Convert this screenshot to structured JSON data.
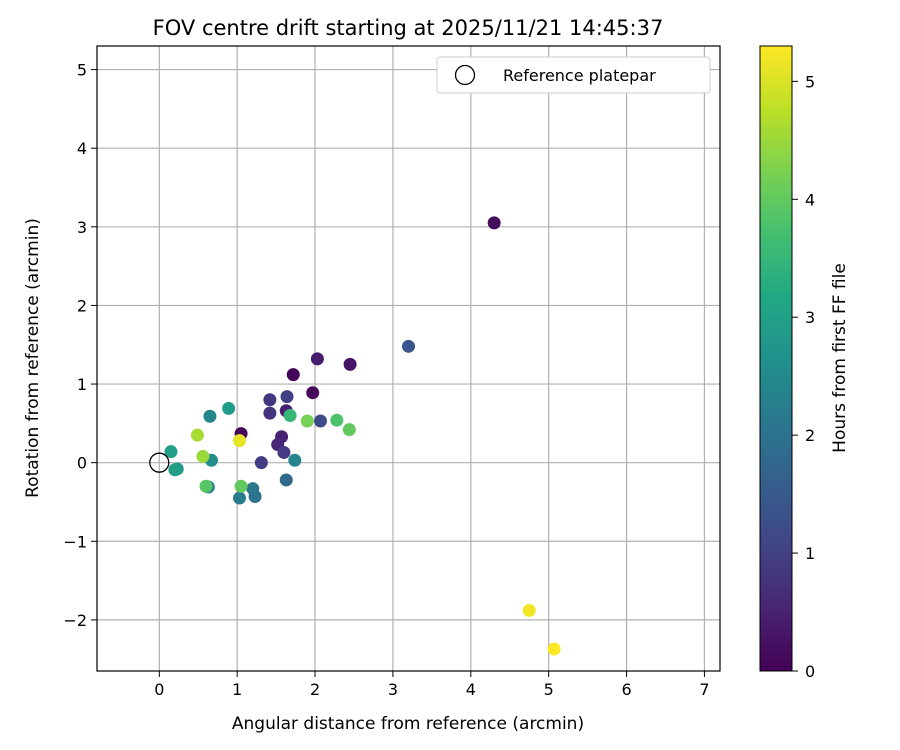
{
  "chart_data": {
    "type": "scatter",
    "title": "FOV centre drift starting at 2025/11/21 14:45:37",
    "xlabel": "Angular distance from reference (arcmin)",
    "ylabel": "Rotation from reference (arcmin)",
    "xlim": [
      -0.8,
      7.2
    ],
    "ylim": [
      -2.65,
      5.3
    ],
    "xticks": [
      0,
      1,
      2,
      3,
      4,
      5,
      6,
      7
    ],
    "yticks": [
      -2,
      -1,
      0,
      1,
      2,
      3,
      4,
      5
    ],
    "xtick_labels": [
      "0",
      "1",
      "2",
      "3",
      "4",
      "5",
      "6",
      "7"
    ],
    "ytick_labels": [
      "−2",
      "−1",
      "0",
      "1",
      "2",
      "3",
      "4",
      "5"
    ],
    "grid": true,
    "legend": {
      "location": "upper-right",
      "label": "Reference platepar"
    },
    "reference_point": {
      "x": 0,
      "y": 0
    },
    "colorbar": {
      "label": "Hours from first FF file",
      "range": [
        0,
        5.3
      ],
      "ticks": [
        0,
        1,
        2,
        3,
        4,
        5
      ],
      "tick_labels": [
        "0",
        "1",
        "2",
        "3",
        "4",
        "5"
      ],
      "colormap": "viridis"
    },
    "points": [
      {
        "x": 4.3,
        "y": 3.05,
        "h": 0.15
      },
      {
        "x": 1.72,
        "y": 1.12,
        "h": 0.05
      },
      {
        "x": 1.97,
        "y": 0.89,
        "h": 0.1
      },
      {
        "x": 1.05,
        "y": 0.37,
        "h": 0.1
      },
      {
        "x": 2.45,
        "y": 1.25,
        "h": 0.3
      },
      {
        "x": 2.03,
        "y": 1.32,
        "h": 0.4
      },
      {
        "x": 1.63,
        "y": 0.66,
        "h": 0.45
      },
      {
        "x": 1.57,
        "y": 0.33,
        "h": 0.5
      },
      {
        "x": 1.52,
        "y": 0.23,
        "h": 0.6
      },
      {
        "x": 1.42,
        "y": 0.63,
        "h": 0.8
      },
      {
        "x": 1.42,
        "y": 0.8,
        "h": 0.85
      },
      {
        "x": 1.6,
        "y": 0.13,
        "h": 0.9
      },
      {
        "x": 1.31,
        "y": 0.0,
        "h": 0.95
      },
      {
        "x": 1.64,
        "y": 0.84,
        "h": 1.0
      },
      {
        "x": 2.07,
        "y": 0.53,
        "h": 1.2
      },
      {
        "x": 3.2,
        "y": 1.48,
        "h": 1.4
      },
      {
        "x": 1.63,
        "y": -0.22,
        "h": 1.8
      },
      {
        "x": 1.23,
        "y": -0.43,
        "h": 2.0
      },
      {
        "x": 1.2,
        "y": -0.33,
        "h": 2.1
      },
      {
        "x": 1.03,
        "y": -0.45,
        "h": 2.2
      },
      {
        "x": 0.63,
        "y": -0.31,
        "h": 2.3
      },
      {
        "x": 1.74,
        "y": 0.03,
        "h": 2.4
      },
      {
        "x": 0.67,
        "y": 0.03,
        "h": 2.6
      },
      {
        "x": 0.65,
        "y": 0.59,
        "h": 2.4
      },
      {
        "x": 0.89,
        "y": 0.69,
        "h": 2.9
      },
      {
        "x": 0.23,
        "y": -0.08,
        "h": 2.8
      },
      {
        "x": 0.2,
        "y": -0.09,
        "h": 2.95
      },
      {
        "x": 0.15,
        "y": 0.14,
        "h": 3.0
      },
      {
        "x": 1.68,
        "y": 0.6,
        "h": 3.5
      },
      {
        "x": 2.28,
        "y": 0.54,
        "h": 3.8
      },
      {
        "x": 0.6,
        "y": -0.3,
        "h": 3.9
      },
      {
        "x": 1.05,
        "y": -0.3,
        "h": 4.0
      },
      {
        "x": 2.44,
        "y": 0.42,
        "h": 4.0
      },
      {
        "x": 1.9,
        "y": 0.53,
        "h": 4.2
      },
      {
        "x": 0.56,
        "y": 0.08,
        "h": 4.5
      },
      {
        "x": 0.49,
        "y": 0.35,
        "h": 4.6
      },
      {
        "x": 1.03,
        "y": 0.28,
        "h": 5.1
      },
      {
        "x": 4.75,
        "y": -1.88,
        "h": 5.2
      },
      {
        "x": 5.07,
        "y": -2.37,
        "h": 5.3
      }
    ]
  }
}
